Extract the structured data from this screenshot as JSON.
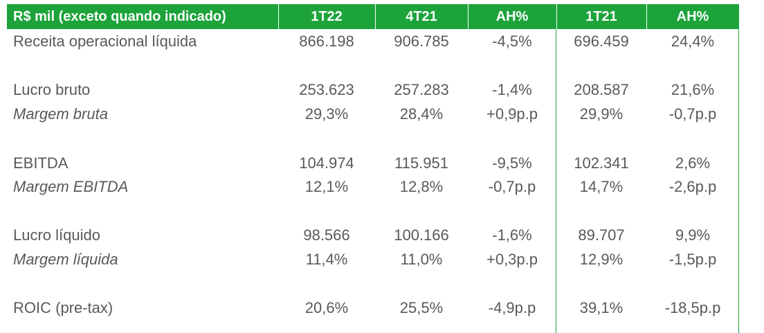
{
  "header": {
    "label": "R$ mil (exceto quando indicado)",
    "col1": "1T22",
    "col2": "4T21",
    "col3": "AH%",
    "col4": "1T21",
    "col5": "AH%"
  },
  "rows": [
    {
      "label": "Receita operacional líquida",
      "v1": "866.198",
      "v2": "906.785",
      "v3": "-4,5%",
      "v4": "696.459",
      "v5": "24,4%"
    },
    {
      "label": "Lucro bruto",
      "v1": "253.623",
      "v2": "257.283",
      "v3": "-1,4%",
      "v4": "208.587",
      "v5": "21,6%"
    },
    {
      "label": "Margem bruta",
      "v1": "29,3%",
      "v2": "28,4%",
      "v3": "+0,9p.p",
      "v4": "29,9%",
      "v5": "-0,7p.p"
    },
    {
      "label": "EBITDA",
      "v1": "104.974",
      "v2": "115.951",
      "v3": "-9,5%",
      "v4": "102.341",
      "v5": "2,6%"
    },
    {
      "label": "Margem EBITDA",
      "v1": "12,1%",
      "v2": "12,8%",
      "v3": "-0,7p.p",
      "v4": "14,7%",
      "v5": "-2,6p.p"
    },
    {
      "label": "Lucro líquido",
      "v1": "98.566",
      "v2": "100.166",
      "v3": "-1,6%",
      "v4": "89.707",
      "v5": "9,9%"
    },
    {
      "label": "Margem líquida",
      "v1": "11,4%",
      "v2": "11,0%",
      "v3": "+0,3p.p",
      "v4": "12,9%",
      "v5": "-1,5p.p"
    },
    {
      "label": "ROIC (pre-tax)",
      "v1": "20,6%",
      "v2": "25,5%",
      "v3": "-4,9p.p",
      "v4": "39,1%",
      "v5": "-18,5p.p"
    }
  ],
  "colors": {
    "accent": "#1ca33a",
    "text": "#595959",
    "header_text": "#ffffff"
  }
}
